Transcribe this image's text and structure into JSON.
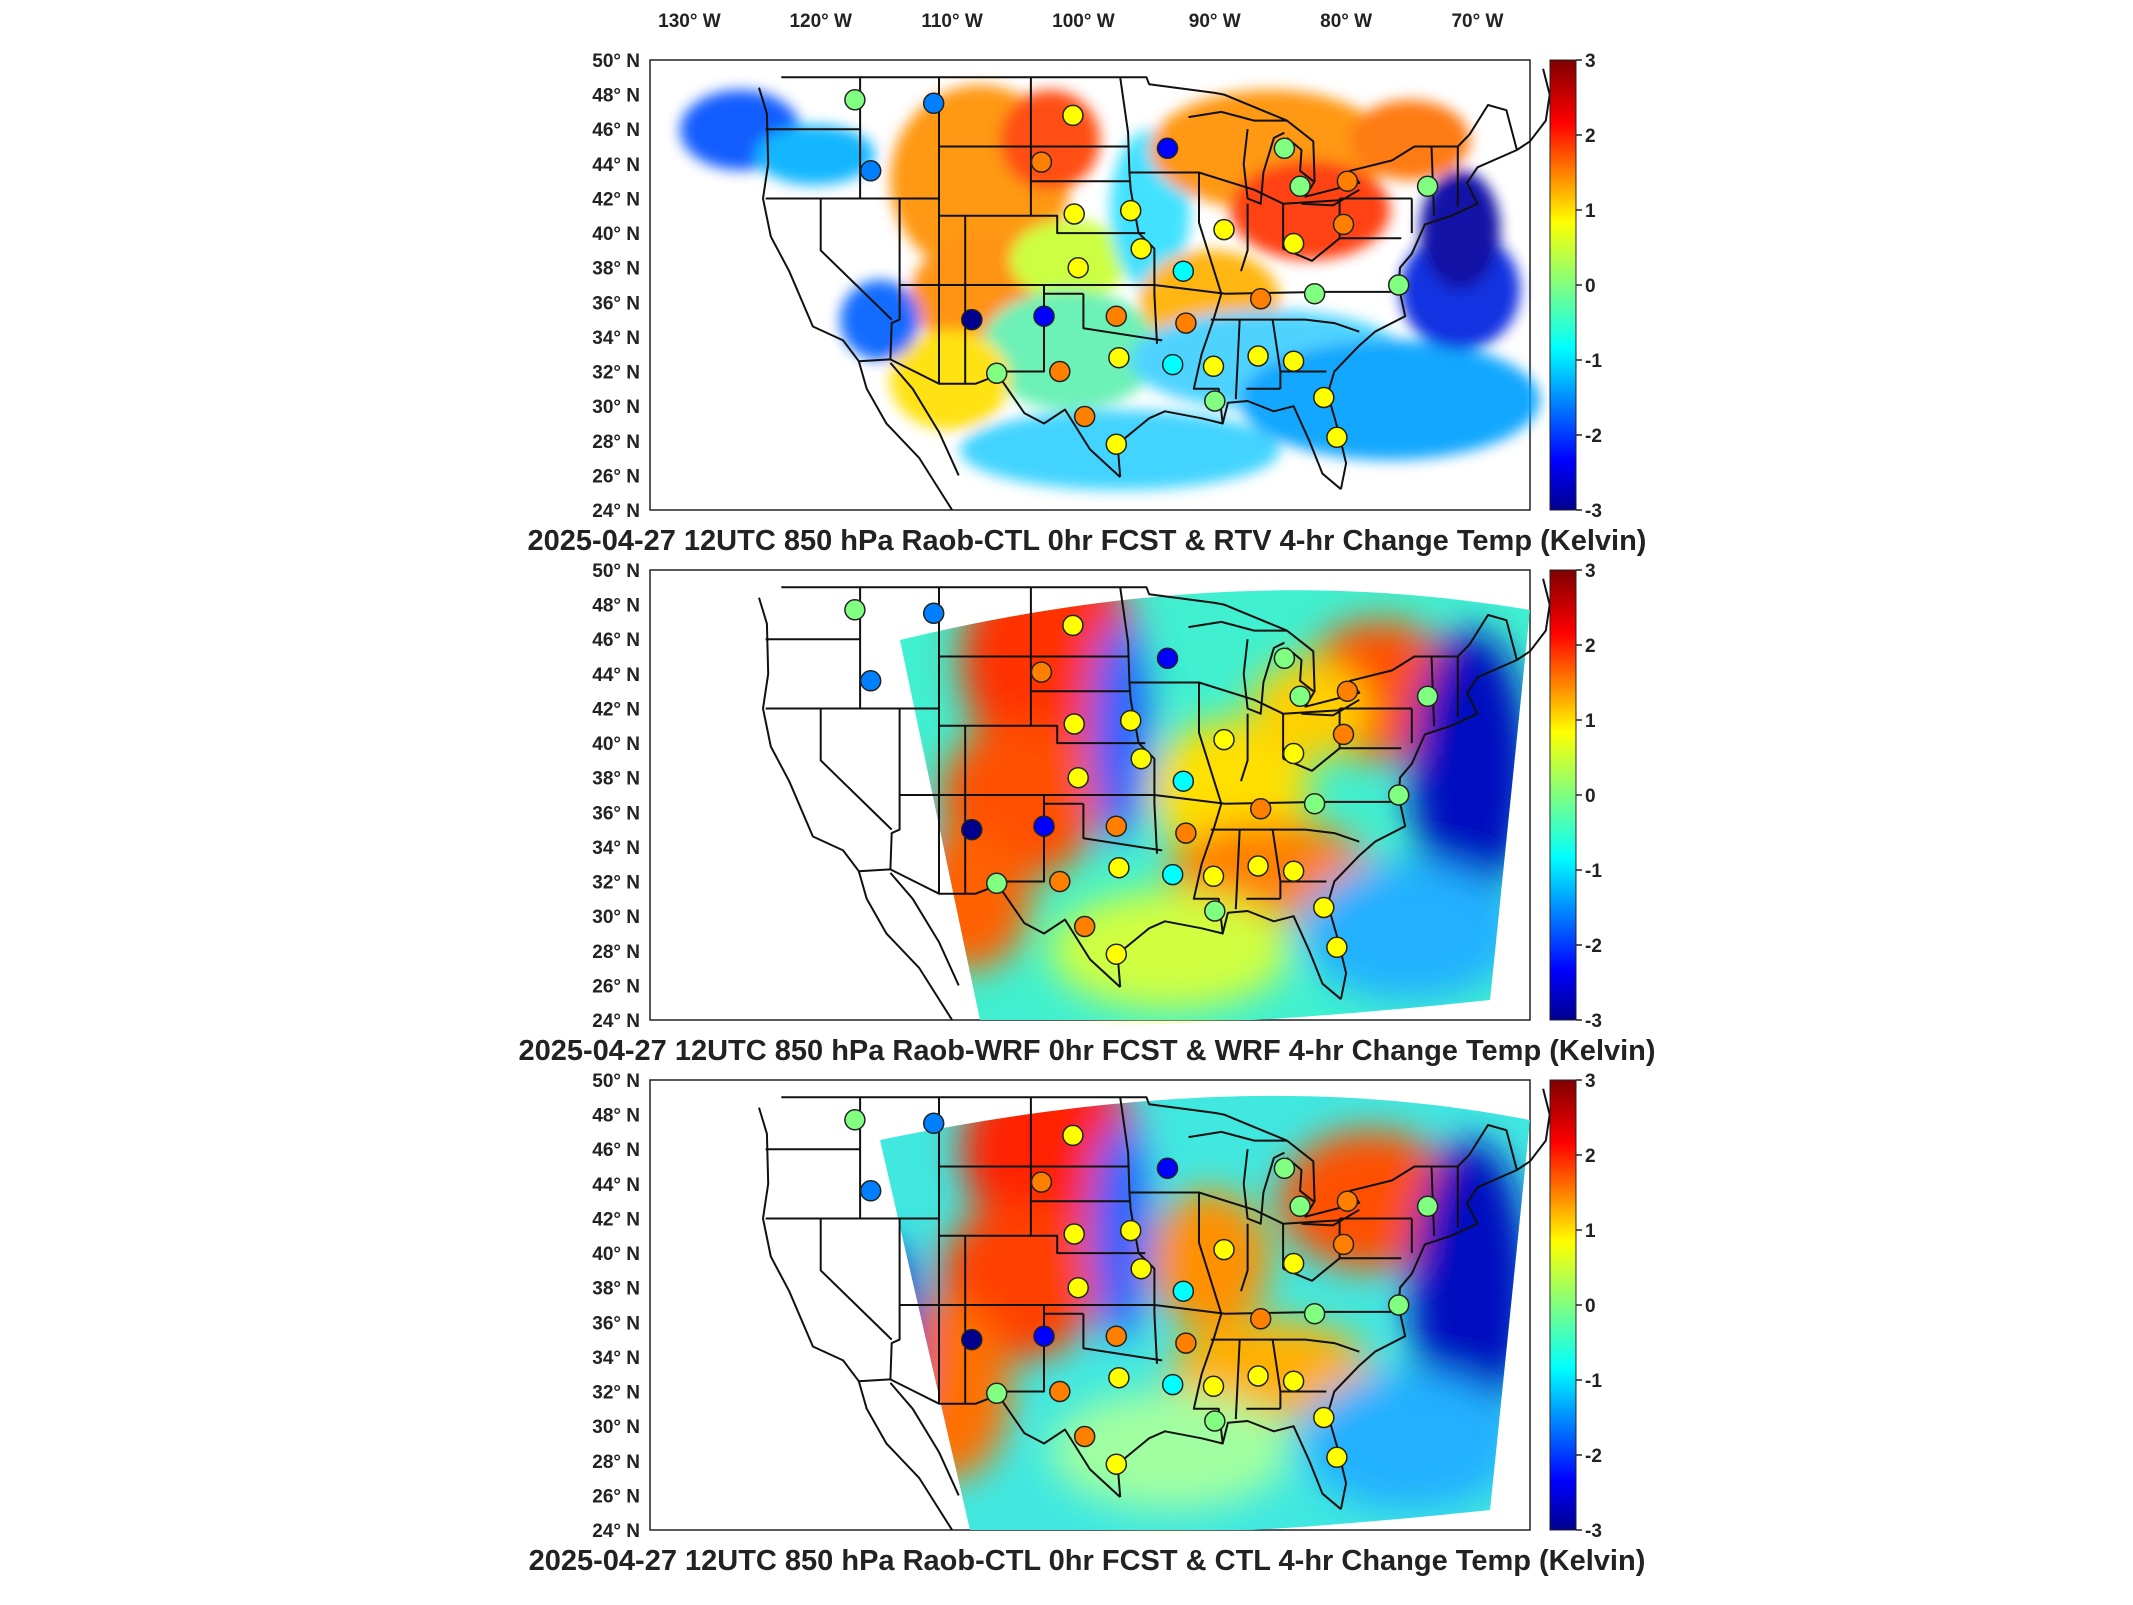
{
  "longitude_labels": [
    "130° W",
    "120° W",
    "110° W",
    "100° W",
    "90° W",
    "80° W",
    "70° W"
  ],
  "latitude_labels": [
    "50° N",
    "48° N",
    "46° N",
    "44° N",
    "42° N",
    "40° N",
    "38° N",
    "36° N",
    "34° N",
    "32° N",
    "30° N",
    "28° N",
    "26° N",
    "24° N"
  ],
  "colorbar": {
    "ticks": [
      "3",
      "2",
      "1",
      "0",
      "-1",
      "-2",
      "-3"
    ],
    "range": [
      -3,
      3
    ],
    "colormap": "jet",
    "colors": [
      "#00008f",
      "#0000ff",
      "#0080ff",
      "#00ffff",
      "#80ff80",
      "#ffff00",
      "#ff8000",
      "#ff0000",
      "#800000"
    ]
  },
  "panels": [
    {
      "title": "2025-04-27 12UTC 850 hPa Raob-CTL 0hr FCST & RTV 4-hr Change Temp (Kelvin)",
      "field": "sparse-observation-swath"
    },
    {
      "title": "2025-04-27 12UTC 850 hPa Raob-WRF 0hr FCST & WRF 4-hr Change Temp (Kelvin)",
      "field": "full-model-field"
    },
    {
      "title": "2025-04-27 12UTC 850 hPa Raob-CTL 0hr FCST & CTL 4-hr Change Temp (Kelvin)",
      "field": "full-model-field"
    }
  ],
  "stations": [
    {
      "lon": -117.4,
      "lat": 47.7,
      "value": 0.2
    },
    {
      "lon": -111.4,
      "lat": 47.5,
      "value": -1.5
    },
    {
      "lon": -100.8,
      "lat": 46.8,
      "value": 1.0
    },
    {
      "lon": -93.6,
      "lat": 44.9,
      "value": -2.6
    },
    {
      "lon": -116.2,
      "lat": 43.6,
      "value": -1.6
    },
    {
      "lon": -103.2,
      "lat": 44.1,
      "value": 1.6
    },
    {
      "lon": -100.7,
      "lat": 41.1,
      "value": 1.0
    },
    {
      "lon": -96.4,
      "lat": 41.3,
      "value": 0.6
    },
    {
      "lon": -89.3,
      "lat": 40.2,
      "value": 0.5
    },
    {
      "lon": -84.7,
      "lat": 44.9,
      "value": 0.3
    },
    {
      "lon": -83.5,
      "lat": 42.7,
      "value": 0.3
    },
    {
      "lon": -79.9,
      "lat": 43.0,
      "value": 1.3
    },
    {
      "lon": -73.8,
      "lat": 42.7,
      "value": 0.0
    },
    {
      "lon": -84.0,
      "lat": 39.4,
      "value": 0.4
    },
    {
      "lon": -80.2,
      "lat": 40.5,
      "value": 1.6
    },
    {
      "lon": -100.4,
      "lat": 38.0,
      "value": 0.9
    },
    {
      "lon": -95.6,
      "lat": 39.1,
      "value": 0.6
    },
    {
      "lon": -92.4,
      "lat": 37.8,
      "value": -1.1
    },
    {
      "lon": -108.5,
      "lat": 35.0,
      "value": -2.9
    },
    {
      "lon": -103.0,
      "lat": 35.2,
      "value": -2.1
    },
    {
      "lon": -97.5,
      "lat": 35.2,
      "value": 1.8
    },
    {
      "lon": -92.2,
      "lat": 34.8,
      "value": 1.7
    },
    {
      "lon": -86.5,
      "lat": 36.2,
      "value": 1.6
    },
    {
      "lon": -82.4,
      "lat": 36.5,
      "value": 0.3
    },
    {
      "lon": -76.0,
      "lat": 37.0,
      "value": -0.2
    },
    {
      "lon": -97.3,
      "lat": 32.8,
      "value": 0.6
    },
    {
      "lon": -101.8,
      "lat": 32.0,
      "value": 1.7
    },
    {
      "lon": -106.6,
      "lat": 31.9,
      "value": 0.0
    },
    {
      "lon": -90.1,
      "lat": 32.3,
      "value": 1.0
    },
    {
      "lon": -86.7,
      "lat": 32.9,
      "value": 0.6
    },
    {
      "lon": -84.0,
      "lat": 32.6,
      "value": 0.4
    },
    {
      "lon": -93.2,
      "lat": 32.4,
      "value": -0.4
    },
    {
      "lon": -99.9,
      "lat": 29.4,
      "value": 1.8
    },
    {
      "lon": -97.5,
      "lat": 27.8,
      "value": 0.8
    },
    {
      "lon": -90.0,
      "lat": 30.3,
      "value": 0.2
    },
    {
      "lon": -81.7,
      "lat": 30.5,
      "value": 1.0
    },
    {
      "lon": -80.7,
      "lat": 28.2,
      "value": 0.4
    }
  ]
}
